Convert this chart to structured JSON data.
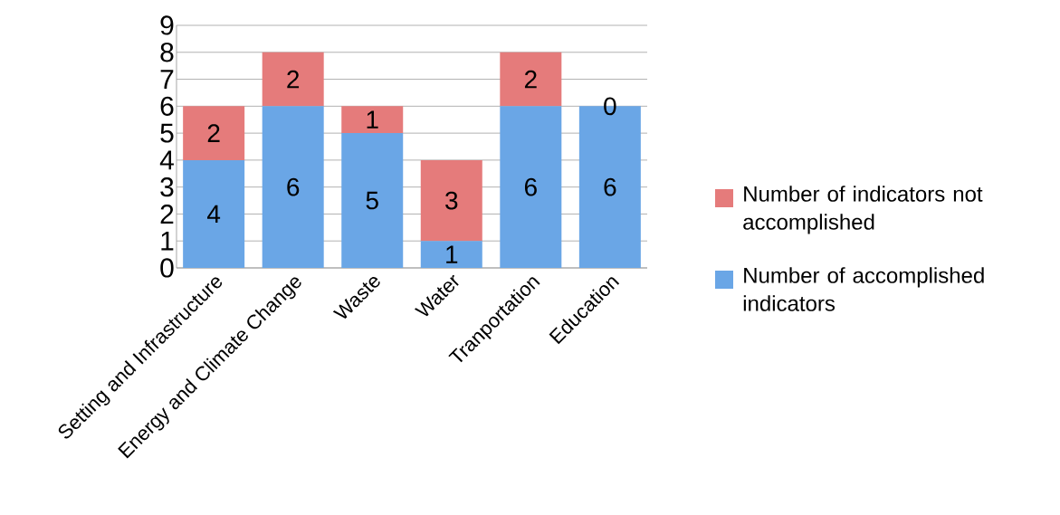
{
  "chart_data": {
    "type": "bar",
    "stacked": true,
    "categories": [
      "Setting and Infrastructure",
      "Energy and Climate Change",
      "Waste",
      "Water",
      "Tranportation",
      "Education"
    ],
    "series": [
      {
        "name": "Number of accomplished indicators",
        "color": "#6aa6e6",
        "values": [
          4,
          6,
          5,
          1,
          6,
          6
        ]
      },
      {
        "name": "Number of indicators not accomplished",
        "color": "#e57b7b",
        "values": [
          2,
          2,
          1,
          3,
          2,
          0
        ]
      }
    ],
    "ylim": [
      0,
      9
    ],
    "yticks": [
      0,
      1,
      2,
      3,
      4,
      5,
      6,
      7,
      8,
      9
    ],
    "grid": "y",
    "legend": "right",
    "data_labels": true
  }
}
